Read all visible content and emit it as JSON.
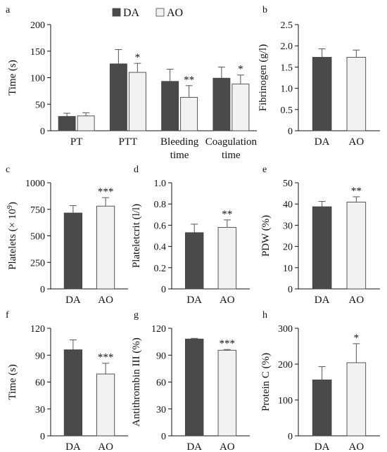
{
  "legend": {
    "series": [
      {
        "name": "DA",
        "color": "#4a4a4a"
      },
      {
        "name": "AO",
        "color": "#f2f2f2"
      }
    ]
  },
  "chart_data": [
    {
      "panel": "a",
      "type": "bar",
      "ylabel": "Time (s)",
      "ylim": [
        0,
        200
      ],
      "yticks": [
        0,
        50,
        100,
        150,
        200
      ],
      "categories": [
        [
          "PT"
        ],
        [
          "PTT"
        ],
        [
          "Bleeding",
          "time"
        ],
        [
          "Coagulation",
          "time"
        ]
      ],
      "series": [
        {
          "name": "DA",
          "values": [
            27,
            126,
            93,
            99
          ],
          "errors": [
            6,
            27,
            23,
            21
          ]
        },
        {
          "name": "AO",
          "values": [
            28,
            110,
            63,
            88
          ],
          "errors": [
            6,
            17,
            22,
            17
          ]
        }
      ],
      "annotations": [
        "",
        "*",
        "**",
        "*"
      ]
    },
    {
      "panel": "b",
      "type": "bar",
      "ylabel": "Fibrinogen (g/l)",
      "ylim": [
        0,
        2.5
      ],
      "yticks": [
        "0",
        "0.5",
        "1.0",
        "1.5",
        "2.0",
        "2.5"
      ],
      "categories": [
        "DA",
        "AO"
      ],
      "values": [
        1.73,
        1.73
      ],
      "errors": [
        0.2,
        0.17
      ],
      "annotations": [
        "",
        ""
      ]
    },
    {
      "panel": "c",
      "type": "bar",
      "ylabel": "Platelets (× 10",
      "ylabel_sup": "9",
      "ylabel_tail": ")",
      "ylim": [
        0,
        1000
      ],
      "yticks": [
        "0",
        "250",
        "500",
        "750",
        "1000"
      ],
      "categories": [
        "DA",
        "AO"
      ],
      "values": [
        715,
        780
      ],
      "errors": [
        70,
        80
      ],
      "annotations": [
        "",
        "***"
      ]
    },
    {
      "panel": "d",
      "type": "bar",
      "ylabel": "Plateletcrit (l/l)",
      "ylim": [
        0,
        1.0
      ],
      "yticks": [
        "0",
        "0.2",
        "0.4",
        "0.6",
        "0.8",
        "1.0"
      ],
      "categories": [
        "DA",
        "AO"
      ],
      "values": [
        0.53,
        0.58
      ],
      "errors": [
        0.08,
        0.07
      ],
      "annotations": [
        "",
        "**"
      ]
    },
    {
      "panel": "e",
      "type": "bar",
      "ylabel": "PDW (%)",
      "ylim": [
        0,
        50
      ],
      "yticks": [
        "0",
        "10",
        "20",
        "30",
        "40",
        "50"
      ],
      "categories": [
        "DA",
        "AO"
      ],
      "values": [
        38.7,
        40.9
      ],
      "errors": [
        2.5,
        2.5
      ],
      "annotations": [
        "",
        "**"
      ]
    },
    {
      "panel": "f",
      "type": "bar",
      "ylabel": "Time (s)",
      "ylim": [
        0,
        120
      ],
      "yticks": [
        "0",
        "30",
        "60",
        "90",
        "120"
      ],
      "categories": [
        "DA",
        "AO"
      ],
      "values": [
        96,
        69
      ],
      "errors": [
        11,
        12
      ],
      "annotations": [
        "",
        "***"
      ]
    },
    {
      "panel": "g",
      "type": "bar",
      "ylabel": "Antithrombin III (%)",
      "ylim": [
        0,
        120
      ],
      "yticks": [
        "0",
        "30",
        "60",
        "90",
        "120"
      ],
      "categories": [
        "DA",
        "AO"
      ],
      "values": [
        108,
        95.5
      ],
      "errors": [
        0.8,
        0.8
      ],
      "annotations": [
        "",
        "***"
      ]
    },
    {
      "panel": "h",
      "type": "bar",
      "ylabel": "Protein C (%)",
      "ylim": [
        0,
        300
      ],
      "yticks": [
        "0",
        "100",
        "200",
        "300"
      ],
      "categories": [
        "DA",
        "AO"
      ],
      "values": [
        156,
        204
      ],
      "errors": [
        37,
        53
      ],
      "annotations": [
        "",
        "*"
      ]
    }
  ]
}
